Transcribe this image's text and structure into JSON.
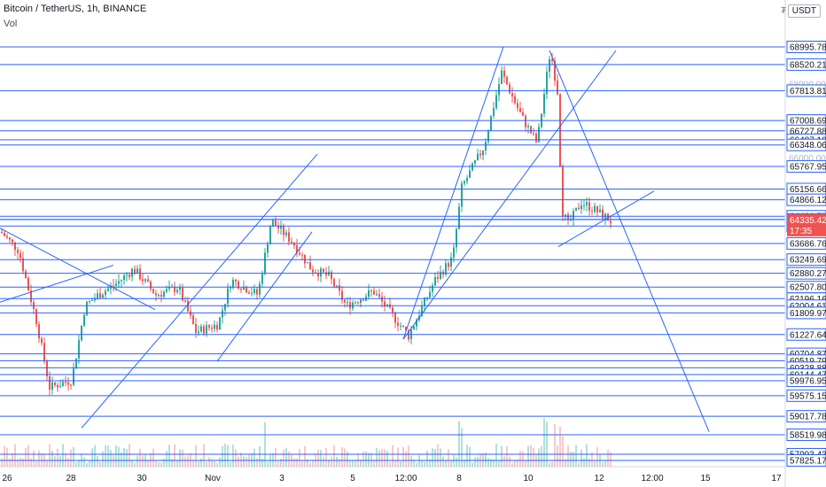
{
  "header": {
    "symbol_line": "Bitcoin / TetherUS, 1h, BINANCE",
    "indicator": "Vol",
    "currency_button": "USDT",
    "currency_prefix": "₮"
  },
  "chart_data": {
    "type": "candlestick",
    "symbol": "Bitcoin / TetherUS",
    "interval": "1h",
    "exchange": "BINANCE",
    "ylim": [
      57700,
      69300
    ],
    "price_scale_labels": [
      {
        "text": "68995.78",
        "value": 68995.78
      },
      {
        "text": "68520.21",
        "value": 68520.21
      },
      {
        "text": "67813.81",
        "value": 67813.81
      },
      {
        "text": "67008.69",
        "value": 67008.69
      },
      {
        "text": "66727.88",
        "value": 66727.88
      },
      {
        "text": "66487.18",
        "value": 66487.18
      },
      {
        "text": "66348.06",
        "value": 66348.06
      },
      {
        "text": "65767.95",
        "value": 65767.95
      },
      {
        "text": "65156.66",
        "value": 65156.66
      },
      {
        "text": "64866.12",
        "value": 64866.12
      },
      {
        "text": "64421.79",
        "value": 64421.79
      },
      {
        "text": "64333.63",
        "value": 64333.63
      },
      {
        "text": "64157.94",
        "value": 64157.94
      },
      {
        "text": "63686.76",
        "value": 63686.76
      },
      {
        "text": "63249.69",
        "value": 63249.69
      },
      {
        "text": "62880.27",
        "value": 62880.27
      },
      {
        "text": "62507.80",
        "value": 62507.8
      },
      {
        "text": "62196.16",
        "value": 62196.16
      },
      {
        "text": "62004.61",
        "value": 62004.61
      },
      {
        "text": "61809.97",
        "value": 61809.97
      },
      {
        "text": "61227.64",
        "value": 61227.64
      },
      {
        "text": "60704.87",
        "value": 60704.87
      },
      {
        "text": "60519.79",
        "value": 60519.79
      },
      {
        "text": "60328.88",
        "value": 60328.88
      },
      {
        "text": "60144.47",
        "value": 60144.47
      },
      {
        "text": "59976.95",
        "value": 59976.95
      },
      {
        "text": "59575.15",
        "value": 59575.15
      },
      {
        "text": "59017.78",
        "value": 59017.78
      },
      {
        "text": "58519.98",
        "value": 58519.98
      },
      {
        "text": "57993.43",
        "value": 57993.43
      },
      {
        "text": "57825.17",
        "value": 57825.17
      }
    ],
    "faint_axis_labels": [
      {
        "text": "68000.00",
        "value": 68000
      },
      {
        "text": "66000.00",
        "value": 66000
      }
    ],
    "current_price": {
      "text": "64335.42",
      "countdown": "17:35",
      "value": 64335.42,
      "color": "#ef5350"
    },
    "x_tick_labels": [
      "26",
      "28",
      "30",
      "Nov",
      "3",
      "5",
      "12:00",
      "8",
      "10",
      "12",
      "12:00",
      "15",
      "17"
    ],
    "horizontal_levels": [
      68995.78,
      68520.21,
      67813.81,
      67008.69,
      66727.88,
      66487.18,
      66348.06,
      65767.95,
      65156.66,
      64866.12,
      64421.79,
      64335.42,
      64333.63,
      64157.94,
      63686.76,
      63249.69,
      62880.27,
      62507.8,
      62196.16,
      62004.61,
      61809.97,
      61227.64,
      60704.87,
      60519.79,
      60328.88,
      60144.47,
      59976.95,
      59575.15,
      59017.78,
      58519.98,
      57993.43,
      57825.17
    ],
    "trend_lines": [
      {
        "from": [
          0,
          62100
        ],
        "to": [
          128,
          63100
        ]
      },
      {
        "from": [
          0,
          64100
        ],
        "to": [
          175,
          61900
        ]
      },
      {
        "from": [
          92,
          58700
        ],
        "to": [
          358,
          66100
        ]
      },
      {
        "from": [
          245,
          60500
        ],
        "to": [
          352,
          64000
        ]
      },
      {
        "from": [
          455,
          61100
        ],
        "to": [
          695,
          68900
        ]
      },
      {
        "from": [
          455,
          61100
        ],
        "to": [
          568,
          69000
        ]
      },
      {
        "from": [
          620,
          68900
        ],
        "to": [
          800,
          58600
        ]
      },
      {
        "from": [
          630,
          63600
        ],
        "to": [
          738,
          65100
        ]
      }
    ],
    "colors": {
      "up": "#26a69a",
      "down": "#ef5350",
      "lines": "#2962ff",
      "volume_up": "#b2dfdb",
      "volume_down": "#f7c9c9"
    }
  }
}
